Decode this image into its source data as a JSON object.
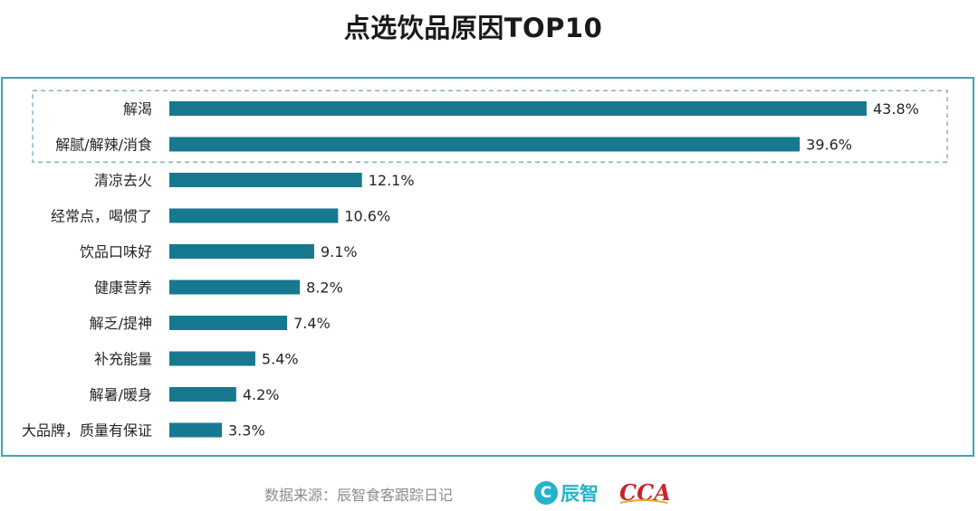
{
  "chart_data": {
    "type": "bar",
    "orientation": "horizontal",
    "title": "点选饮品原因TOP10",
    "categories": [
      "解渴",
      "解腻/解辣/消食",
      "清凉去火",
      "经常点，喝惯了",
      "饮品口味好",
      "健康营养",
      "解乏/提神",
      "补充能量",
      "解暑/暖身",
      "大品牌，质量有保证"
    ],
    "values": [
      43.8,
      39.6,
      12.1,
      10.6,
      9.1,
      8.2,
      7.4,
      5.4,
      4.2,
      3.3
    ],
    "value_labels": [
      "43.8%",
      "39.6%",
      "12.1%",
      "10.6%",
      "9.1%",
      "8.2%",
      "7.4%",
      "5.4%",
      "4.2%",
      "3.3%"
    ],
    "value_suffix": "%",
    "xlim": [
      0,
      43.8
    ],
    "highlight_top_n": 2,
    "grid": false,
    "legend": "none",
    "colors": {
      "bar": "#17798f",
      "frame": "#3aa6b9",
      "highlight": "#6fa3b8"
    }
  },
  "footer": {
    "source": "数据来源：辰智食客跟踪日记",
    "logo_chenzhi_mark": "C",
    "logo_chenzhi_text": "辰智",
    "logo_cca_text": "CCA"
  }
}
